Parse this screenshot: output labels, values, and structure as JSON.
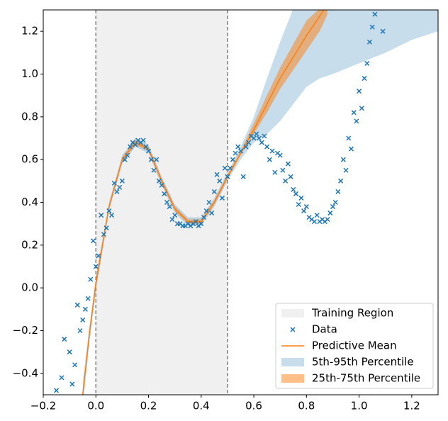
{
  "chart_data": {
    "type": "line",
    "xlim": [
      -0.2,
      1.3
    ],
    "ylim": [
      -0.5,
      1.3
    ],
    "xticks": [
      {
        "value": -0.2,
        "label": "−0.2"
      },
      {
        "value": 0,
        "label": "0.0"
      },
      0.2,
      0.4,
      0.6,
      0.8,
      {
        "value": 1,
        "label": "1.0"
      },
      1.2
    ],
    "yticks": [
      {
        "value": -0.4,
        "label": "−0.4"
      },
      {
        "value": -0.2,
        "label": "−0.2"
      },
      {
        "value": 0,
        "label": "0.0"
      },
      0.2,
      0.4,
      0.6,
      0.8,
      {
        "value": 1,
        "label": "1.0"
      },
      1.2
    ],
    "legend": "lower right",
    "training_region": {
      "name": "Training Region",
      "range": [
        0,
        0.5
      ],
      "color": "#f0f0f0",
      "edge_color": "#808080"
    },
    "data": {
      "name": "Data",
      "color": "#1f77b4",
      "x": [
        -0.15,
        -0.13,
        -0.12,
        -0.1,
        -0.09,
        -0.08,
        -0.07,
        -0.06,
        -0.05,
        -0.04,
        -0.03,
        -0.02,
        -0.01,
        0.0,
        0.01,
        0.02,
        0.03,
        0.04,
        0.05,
        0.06,
        0.07,
        0.08,
        0.09,
        0.1,
        0.11,
        0.12,
        0.13,
        0.14,
        0.15,
        0.16,
        0.17,
        0.18,
        0.19,
        0.2,
        0.21,
        0.22,
        0.23,
        0.24,
        0.25,
        0.26,
        0.27,
        0.28,
        0.29,
        0.3,
        0.31,
        0.32,
        0.33,
        0.34,
        0.35,
        0.36,
        0.37,
        0.38,
        0.39,
        0.4,
        0.41,
        0.42,
        0.43,
        0.44,
        0.45,
        0.46,
        0.47,
        0.48,
        0.49,
        0.5,
        0.51,
        0.52,
        0.53,
        0.54,
        0.55,
        0.56,
        0.57,
        0.58,
        0.59,
        0.6,
        0.61,
        0.62,
        0.63,
        0.64,
        0.65,
        0.66,
        0.67,
        0.68,
        0.69,
        0.7,
        0.71,
        0.72,
        0.73,
        0.74,
        0.75,
        0.76,
        0.77,
        0.78,
        0.79,
        0.8,
        0.81,
        0.82,
        0.83,
        0.84,
        0.85,
        0.86,
        0.87,
        0.88,
        0.89,
        0.9,
        0.91,
        0.92,
        0.93,
        0.94,
        0.95,
        0.96,
        0.97,
        0.98,
        0.99,
        1.0,
        1.01,
        1.02,
        1.03,
        1.04,
        1.05,
        1.06,
        1.09
      ],
      "y": [
        -0.48,
        -0.42,
        -0.24,
        -0.3,
        -0.45,
        -0.36,
        -0.08,
        -0.2,
        -0.15,
        -0.1,
        -0.05,
        0.04,
        0.22,
        0.1,
        0.15,
        0.34,
        0.25,
        0.28,
        0.36,
        0.34,
        0.49,
        0.45,
        0.47,
        0.5,
        0.6,
        0.62,
        0.66,
        0.68,
        0.67,
        0.69,
        0.68,
        0.69,
        0.66,
        0.64,
        0.6,
        0.55,
        0.6,
        0.5,
        0.48,
        0.44,
        0.4,
        0.38,
        0.32,
        0.34,
        0.3,
        0.3,
        0.29,
        0.29,
        0.3,
        0.29,
        0.3,
        0.31,
        0.29,
        0.3,
        0.33,
        0.36,
        0.4,
        0.35,
        0.45,
        0.53,
        0.5,
        0.42,
        0.56,
        0.52,
        0.56,
        0.6,
        0.63,
        0.66,
        0.64,
        0.52,
        0.66,
        0.68,
        0.71,
        0.7,
        0.72,
        0.7,
        0.68,
        0.71,
        0.66,
        0.6,
        0.64,
        0.54,
        0.63,
        0.62,
        0.55,
        0.5,
        0.58,
        0.52,
        0.46,
        0.44,
        0.39,
        0.42,
        0.36,
        0.38,
        0.33,
        0.32,
        0.31,
        0.34,
        0.31,
        0.32,
        0.31,
        0.32,
        0.35,
        0.38,
        0.4,
        0.45,
        0.5,
        0.6,
        0.55,
        0.7,
        0.65,
        0.82,
        0.78,
        0.92,
        0.84,
        0.98,
        1.05,
        1.15,
        1.22,
        1.28,
        1.2
      ]
    },
    "mean": {
      "name": "Predictive Mean",
      "color": "#ff7f0e",
      "x": [
        -0.05,
        -0.025,
        0,
        0.05,
        0.1,
        0.15,
        0.2,
        0.25,
        0.3,
        0.35,
        0.4,
        0.45,
        0.5,
        0.55,
        0.6,
        0.65,
        0.7,
        0.75,
        0.8,
        0.85,
        0.9
      ],
      "values": [
        -0.5,
        -0.22,
        0.02,
        0.38,
        0.6,
        0.68,
        0.65,
        0.5,
        0.37,
        0.31,
        0.31,
        0.4,
        0.52,
        0.63,
        0.74,
        0.86,
        0.98,
        1.08,
        1.18,
        1.27,
        1.36
      ]
    },
    "bands": [
      {
        "name": "5th-95th Percentile",
        "color": "#1f77b4",
        "opacity": 0.25,
        "x": [
          -0.05,
          -0.025,
          0,
          0.05,
          0.1,
          0.15,
          0.2,
          0.25,
          0.3,
          0.35,
          0.4,
          0.45,
          0.5,
          0.55,
          0.6,
          0.65,
          0.7,
          0.75,
          0.8,
          0.85,
          0.9,
          1.0,
          1.1,
          1.2,
          1.3
        ],
        "lower": [
          -0.56,
          -0.26,
          -0.01,
          0.36,
          0.58,
          0.66,
          0.63,
          0.48,
          0.35,
          0.29,
          0.29,
          0.38,
          0.5,
          0.6,
          0.68,
          0.72,
          0.78,
          0.86,
          0.94,
          0.98,
          1.0,
          1.05,
          1.1,
          1.16,
          1.2
        ],
        "upper": [
          -0.44,
          -0.18,
          0.05,
          0.4,
          0.62,
          0.7,
          0.67,
          0.52,
          0.39,
          0.33,
          0.33,
          0.42,
          0.54,
          0.66,
          0.8,
          0.98,
          1.15,
          null,
          null,
          null,
          null,
          null,
          null,
          null,
          null
        ]
      },
      {
        "name": "25th-75th Percentile",
        "color": "#ff7f0e",
        "opacity": 0.5,
        "x": [
          -0.05,
          -0.025,
          0,
          0.05,
          0.1,
          0.15,
          0.2,
          0.25,
          0.3,
          0.35,
          0.4,
          0.45,
          0.5,
          0.55,
          0.6,
          0.65,
          0.7,
          0.75,
          0.8,
          0.85,
          0.88
        ],
        "lower": [
          -0.52,
          -0.24,
          0.0,
          0.37,
          0.59,
          0.67,
          0.64,
          0.49,
          0.36,
          0.3,
          0.3,
          0.39,
          0.51,
          0.62,
          0.72,
          0.82,
          0.93,
          1.02,
          1.11,
          1.2,
          1.28
        ],
        "upper": [
          -0.48,
          -0.2,
          0.04,
          0.39,
          0.61,
          0.69,
          0.66,
          0.51,
          0.38,
          0.32,
          0.32,
          0.41,
          0.53,
          0.64,
          0.77,
          0.9,
          1.03,
          1.14,
          1.25,
          null,
          null
        ]
      }
    ]
  }
}
